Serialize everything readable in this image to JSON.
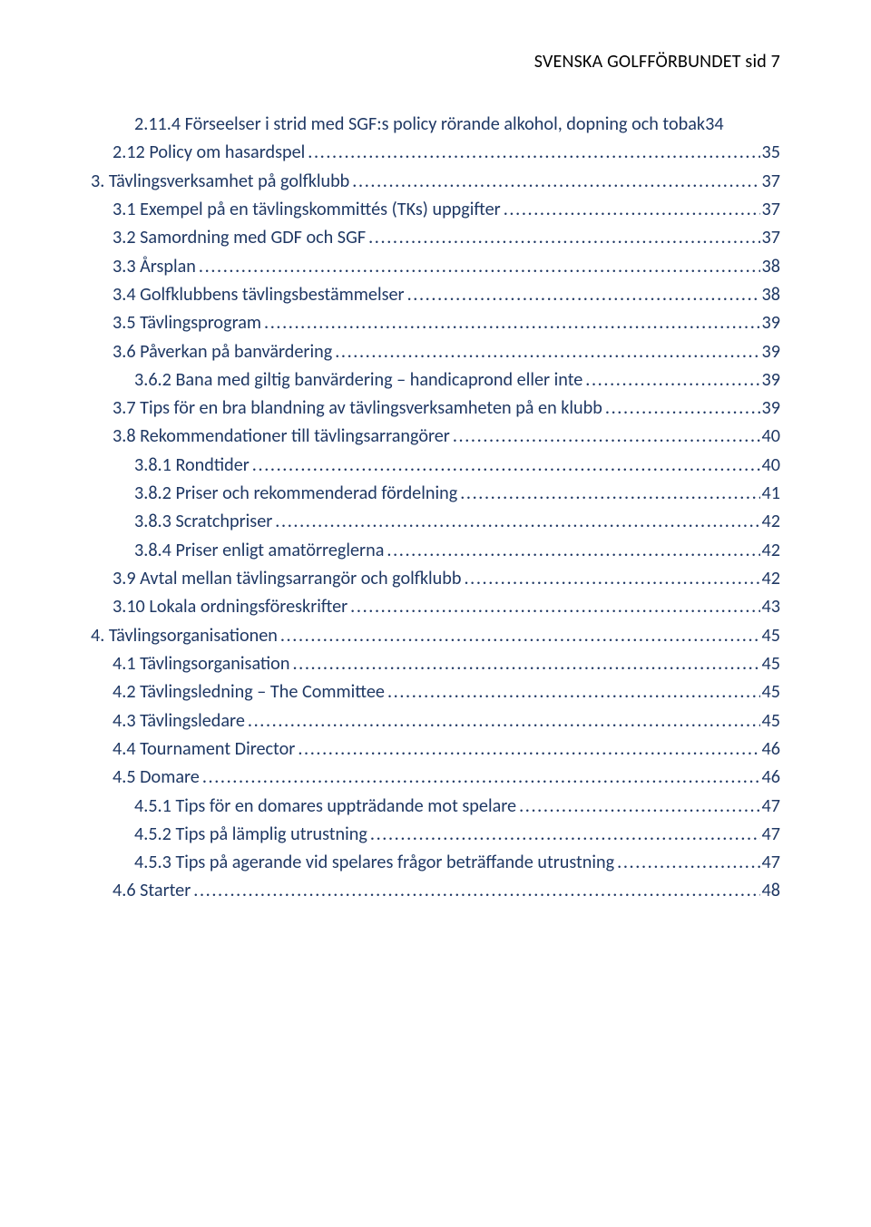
{
  "header": {
    "text": "SVENSKA GOLFFÖRBUNDET   sid 7"
  },
  "colors": {
    "link": "#1f3864",
    "text": "#000000",
    "background": "#ffffff"
  },
  "typography": {
    "font_family": "Calibri",
    "header_fontsize_pt": 15,
    "toc_fontsize_pt": 15,
    "line_height": 1.55
  },
  "toc": [
    {
      "level": 3,
      "label": "2.11.4 Förseelser i strid med SGF:s policy rörande alkohol, dopning och tobak",
      "page": "34",
      "no_leader": true
    },
    {
      "level": 2,
      "label": "2.12 Policy om hasardspel",
      "page": "35"
    },
    {
      "level": 1,
      "label": "3. Tävlingsverksamhet på golfklubb",
      "page": "37"
    },
    {
      "level": 2,
      "label": "3.1 Exempel på en tävlingskommittés (TKs) uppgifter",
      "page": "37"
    },
    {
      "level": 2,
      "label": "3.2 Samordning med GDF och SGF",
      "page": "37"
    },
    {
      "level": 2,
      "label": "3.3 Årsplan",
      "page": "38"
    },
    {
      "level": 2,
      "label": "3.4 Golfklubbens tävlingsbestämmelser",
      "page": "38"
    },
    {
      "level": 2,
      "label": "3.5 Tävlingsprogram",
      "page": "39"
    },
    {
      "level": 2,
      "label": "3.6 Påverkan på banvärdering",
      "page": "39"
    },
    {
      "level": 3,
      "label": "3.6.2 Bana med giltig banvärdering – handicaprond eller inte",
      "page": "39"
    },
    {
      "level": 2,
      "label": "3.7 Tips för en bra blandning av tävlingsverksamheten på en klubb",
      "page": "39"
    },
    {
      "level": 2,
      "label": "3.8 Rekommendationer till tävlingsarrangörer",
      "page": "40"
    },
    {
      "level": 3,
      "label": "3.8.1 Rondtider",
      "page": "40"
    },
    {
      "level": 3,
      "label": "3.8.2 Priser och rekommenderad fördelning",
      "page": "41"
    },
    {
      "level": 3,
      "label": "3.8.3 Scratchpriser",
      "page": "42"
    },
    {
      "level": 3,
      "label": "3.8.4 Priser enligt amatörreglerna",
      "page": "42"
    },
    {
      "level": 2,
      "label": "3.9 Avtal mellan tävlingsarrangör och golfklubb",
      "page": "42"
    },
    {
      "level": 2,
      "label": "3.10 Lokala ordningsföreskrifter",
      "page": "43"
    },
    {
      "level": 1,
      "label": "4. Tävlingsorganisationen",
      "page": "45"
    },
    {
      "level": 2,
      "label": "4.1 Tävlingsorganisation",
      "page": "45"
    },
    {
      "level": 2,
      "label": "4.2 Tävlingsledning – The Committee",
      "page": "45"
    },
    {
      "level": 2,
      "label": "4.3 Tävlingsledare",
      "page": "45"
    },
    {
      "level": 2,
      "label": "4.4 Tournament Director",
      "page": "46"
    },
    {
      "level": 2,
      "label": "4.5 Domare",
      "page": "46"
    },
    {
      "level": 3,
      "label": "4.5.1 Tips för en domares uppträdande mot spelare",
      "page": "47"
    },
    {
      "level": 3,
      "label": "4.5.2 Tips på lämplig utrustning",
      "page": "47"
    },
    {
      "level": 3,
      "label": "4.5.3 Tips på agerande vid spelares frågor beträffande utrustning",
      "page": "47"
    },
    {
      "level": 2,
      "label": "4.6 Starter",
      "page": "48"
    }
  ]
}
